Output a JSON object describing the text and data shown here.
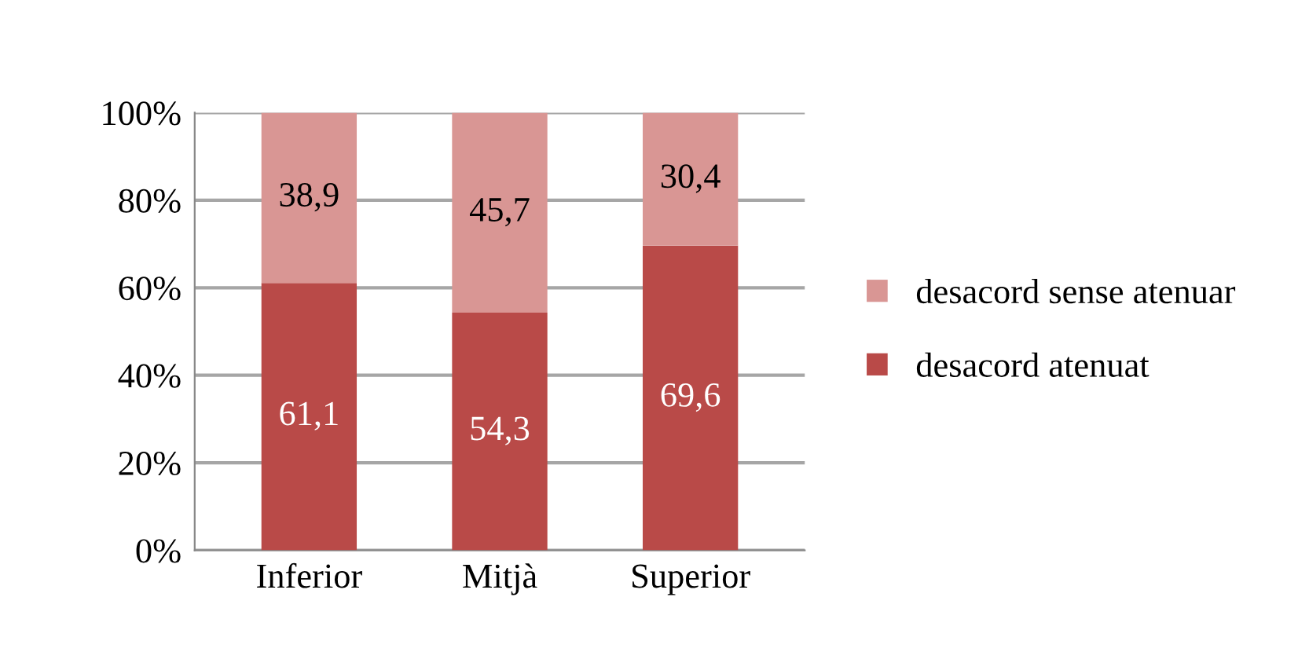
{
  "chart_data": {
    "type": "bar",
    "stacked": true,
    "categories": [
      "Inferior",
      "Mitjà",
      "Superior"
    ],
    "series": [
      {
        "name": "desacord atenuat",
        "color": "#b94a48",
        "values": [
          61.1,
          54.3,
          69.6
        ],
        "value_labels": [
          "61,1",
          "54,3",
          "69,6"
        ]
      },
      {
        "name": "desacord sense atenuar",
        "color": "#d99694",
        "values": [
          38.9,
          45.7,
          30.4
        ],
        "value_labels": [
          "38,9",
          "45,7",
          "30,4"
        ]
      }
    ],
    "ylim": [
      0,
      100
    ],
    "yticks": [
      {
        "value": 0,
        "label": "0%"
      },
      {
        "value": 20,
        "label": "20%"
      },
      {
        "value": 40,
        "label": "40%"
      },
      {
        "value": 60,
        "label": "60%"
      },
      {
        "value": 80,
        "label": "80%"
      },
      {
        "value": 100,
        "label": "100%"
      }
    ],
    "grid": "y",
    "legend": "right"
  }
}
